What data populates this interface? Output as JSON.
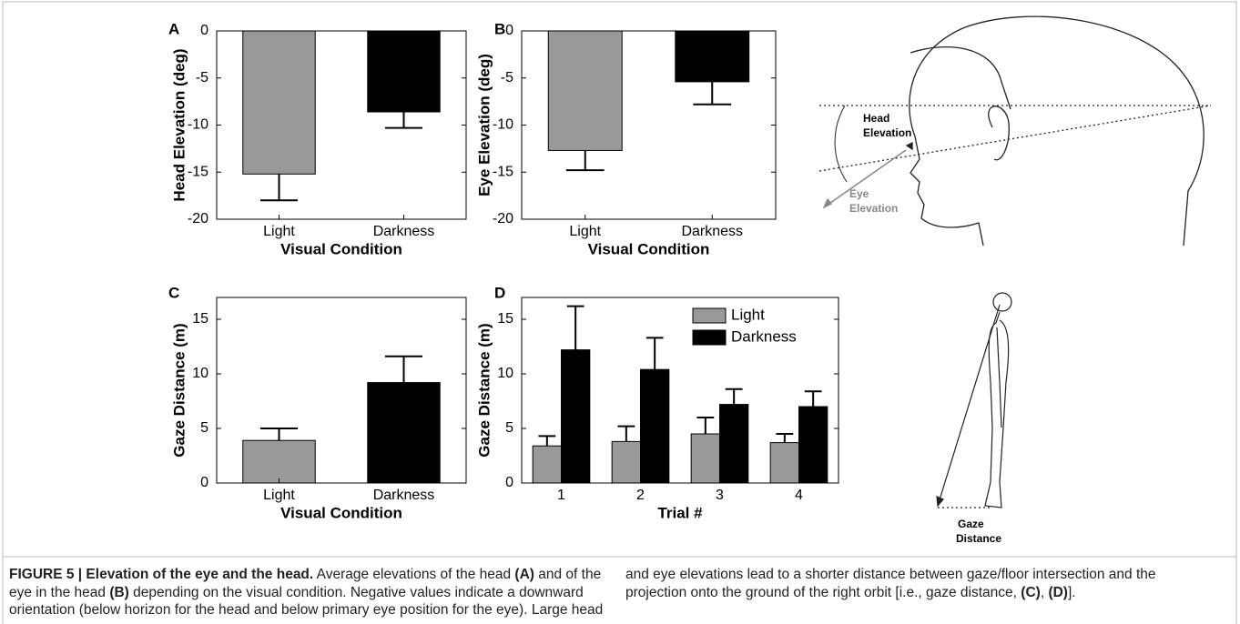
{
  "chart_data": [
    {
      "type": "bar",
      "panel": "A",
      "ylabel": "Head Elevation (deg)",
      "xlabel": "Visual Condition",
      "categories": [
        "Light",
        "Darkness"
      ],
      "values": [
        -15.2,
        -8.6
      ],
      "errors": [
        2.8,
        1.7
      ],
      "colors": [
        "#999999",
        "#000000"
      ],
      "ylim": [
        -20,
        0
      ],
      "yticks": [
        -20,
        -15,
        -10,
        -5,
        0
      ]
    },
    {
      "type": "bar",
      "panel": "B",
      "ylabel": "Eye Elevation (deg)",
      "xlabel": "Visual Condition",
      "categories": [
        "Light",
        "Darkness"
      ],
      "values": [
        -12.7,
        -5.4
      ],
      "errors": [
        2.1,
        2.4
      ],
      "colors": [
        "#999999",
        "#000000"
      ],
      "ylim": [
        -20,
        0
      ],
      "yticks": [
        -20,
        -15,
        -10,
        -5,
        0
      ]
    },
    {
      "type": "bar",
      "panel": "C",
      "ylabel": "Gaze Distance (m)",
      "xlabel": "Visual Condition",
      "categories": [
        "Light",
        "Darkness"
      ],
      "values": [
        3.9,
        9.2
      ],
      "errors": [
        1.1,
        2.4
      ],
      "colors": [
        "#999999",
        "#000000"
      ],
      "ylim": [
        0,
        17
      ],
      "yticks": [
        0,
        5,
        10,
        15
      ]
    },
    {
      "type": "grouped_bar",
      "panel": "D",
      "ylabel": "Gaze Distance (m)",
      "xlabel": "Trial #",
      "categories": [
        "1",
        "2",
        "3",
        "4"
      ],
      "series": [
        {
          "name": "Light",
          "color": "#999999",
          "values": [
            3.4,
            3.8,
            4.5,
            3.7
          ],
          "errors": [
            0.9,
            1.4,
            1.5,
            0.8
          ]
        },
        {
          "name": "Darkness",
          "color": "#000000",
          "values": [
            12.2,
            10.4,
            7.2,
            7.0
          ],
          "errors": [
            4.0,
            2.9,
            1.4,
            1.4
          ]
        }
      ],
      "ylim": [
        0,
        17
      ],
      "yticks": [
        0,
        5,
        10,
        15
      ],
      "legend": "upper right"
    }
  ],
  "diagrams": {
    "head_elevation": [
      "Head",
      "Elevation"
    ],
    "eye_elevation": [
      "Eye",
      "Elevation"
    ],
    "gaze_distance": [
      "Gaze",
      "Distance"
    ]
  },
  "caption": [
    {
      "text": "FIGURE 5 | Elevation of the eye and the head.",
      "bold": true
    },
    {
      "text": " Average elevations of the head ",
      "bold": false
    },
    {
      "text": "(A)",
      "bold": true
    },
    {
      "text": " and of the eye in the head ",
      "bold": false
    },
    {
      "text": "(B)",
      "bold": true
    },
    {
      "text": " depending on the visual condition. Negative values indicate a downward orientation (below horizon for the head and below primary eye position for the eye). Large head and eye elevations lead to a shorter distance between gaze/floor intersection and the projection onto the ground of the right orbit [i.e., gaze distance, ",
      "bold": false
    },
    {
      "text": "(C)",
      "bold": true
    },
    {
      "text": ", ",
      "bold": false
    },
    {
      "text": "(D)",
      "bold": true
    },
    {
      "text": "].",
      "bold": false
    }
  ]
}
